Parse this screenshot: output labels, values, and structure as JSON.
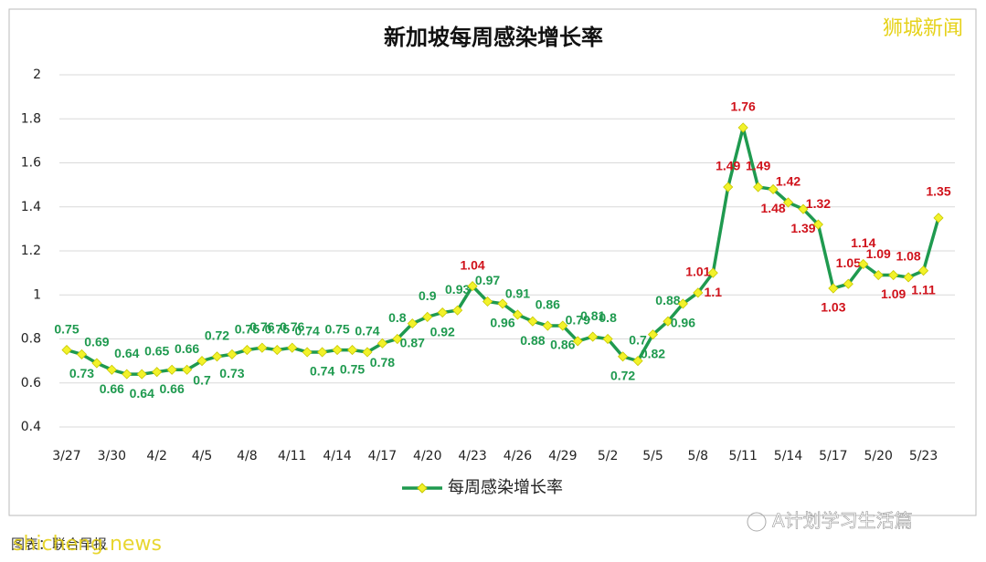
{
  "chart_data": {
    "type": "line",
    "title": "新加坡每周感染增长率",
    "categories": [
      "3/27",
      null,
      null,
      "3/30",
      null,
      null,
      "4/2",
      null,
      null,
      "4/5",
      null,
      null,
      "4/8",
      null,
      null,
      "4/11",
      null,
      null,
      "4/14",
      null,
      null,
      "4/17",
      null,
      null,
      "4/20",
      null,
      null,
      "4/23",
      null,
      null,
      "4/26",
      null,
      null,
      "4/29",
      null,
      null,
      "5/2",
      null,
      null,
      "5/5",
      null,
      null,
      "5/8",
      null,
      null,
      "5/11",
      null,
      null,
      "5/14",
      null,
      null,
      "5/17",
      null,
      null,
      "5/20",
      null,
      null,
      "5/23",
      null
    ],
    "series": [
      {
        "name": "每周感染增长率",
        "color": "#1f9a4f",
        "marker_color": "#f2f22a",
        "values": [
          0.75,
          0.73,
          0.69,
          0.66,
          0.64,
          0.64,
          0.65,
          0.66,
          0.66,
          0.7,
          0.72,
          0.73,
          0.75,
          0.76,
          0.75,
          0.76,
          0.74,
          0.74,
          0.75,
          0.75,
          0.74,
          0.78,
          0.8,
          0.87,
          0.9,
          0.92,
          0.93,
          1.04,
          0.97,
          0.96,
          0.91,
          0.88,
          0.86,
          0.86,
          0.79,
          0.81,
          0.8,
          0.72,
          0.7,
          0.82,
          0.88,
          0.96,
          1.01,
          1.1,
          1.49,
          1.76,
          1.49,
          1.48,
          1.42,
          1.39,
          1.32,
          1.03,
          1.05,
          1.14,
          1.09,
          1.09,
          1.08,
          1.11,
          1.35
        ]
      }
    ],
    "ylim": [
      0.4,
      2
    ],
    "yticks": [
      0.4,
      0.6,
      0.8,
      1,
      1.2,
      1.4,
      1.6,
      1.8,
      2
    ],
    "grid": true,
    "legend": "bottom",
    "source": "图表：联合早报",
    "watermarks": [
      "狮城新闻",
      "shicheng.news",
      "A计划学习生活篇"
    ]
  }
}
